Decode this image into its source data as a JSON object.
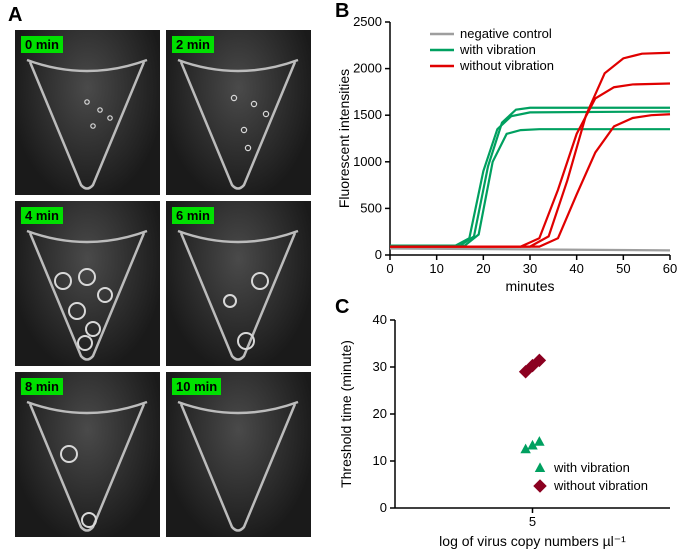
{
  "panelA": {
    "letter": "A",
    "tiles": [
      {
        "label": "0 min",
        "bubbles": [
          [
            72,
            72,
            2.2
          ],
          [
            85,
            80,
            2.2
          ],
          [
            95,
            88,
            2.2
          ],
          [
            78,
            96,
            2.2
          ]
        ]
      },
      {
        "label": "2 min",
        "bubbles": [
          [
            68,
            68,
            2.6
          ],
          [
            88,
            74,
            2.6
          ],
          [
            100,
            84,
            2.6
          ],
          [
            78,
            100,
            2.6
          ],
          [
            82,
            118,
            2.6
          ]
        ]
      },
      {
        "label": "4 min",
        "bubbles": [
          [
            48,
            80,
            8
          ],
          [
            72,
            76,
            8
          ],
          [
            90,
            94,
            7
          ],
          [
            62,
            110,
            8
          ],
          [
            78,
            128,
            7
          ],
          [
            70,
            142,
            7
          ]
        ]
      },
      {
        "label": "6 min",
        "bubbles": [
          [
            94,
            80,
            8
          ],
          [
            64,
            100,
            6
          ],
          [
            80,
            140,
            8
          ]
        ]
      },
      {
        "label": "8 min",
        "bubbles": [
          [
            54,
            82,
            8
          ],
          [
            74,
            148,
            7
          ]
        ]
      },
      {
        "label": "10 min",
        "bubbles": []
      }
    ],
    "tag_bg": "#00e000",
    "cone_stroke": "#bcbcbc",
    "cone_stroke_w": 2.5
  },
  "panelB": {
    "letter": "B",
    "xlabel": "minutes",
    "ylabel": "Fluorescent intensities",
    "xlim": [
      0,
      60
    ],
    "xtick_step": 10,
    "ylim": [
      0,
      2500
    ],
    "ytick_step": 500,
    "legend": [
      {
        "label": "negative control",
        "color": "#9e9e9e"
      },
      {
        "label": "with vibration",
        "color": "#00a060"
      },
      {
        "label": "without vibration",
        "color": "#e00000"
      }
    ],
    "series": [
      {
        "color": "#9e9e9e",
        "pts": [
          [
            0,
            70
          ],
          [
            60,
            50
          ]
        ]
      },
      {
        "color": "#00a060",
        "pts": [
          [
            0,
            100
          ],
          [
            14,
            100
          ],
          [
            17,
            180
          ],
          [
            20,
            900
          ],
          [
            23,
            1350
          ],
          [
            26,
            1490
          ],
          [
            30,
            1530
          ],
          [
            60,
            1540
          ]
        ]
      },
      {
        "color": "#00a060",
        "pts": [
          [
            0,
            100
          ],
          [
            15,
            100
          ],
          [
            18,
            200
          ],
          [
            21,
            950
          ],
          [
            24,
            1420
          ],
          [
            27,
            1560
          ],
          [
            30,
            1580
          ],
          [
            60,
            1580
          ]
        ]
      },
      {
        "color": "#00a060",
        "pts": [
          [
            0,
            100
          ],
          [
            16,
            100
          ],
          [
            19,
            220
          ],
          [
            22,
            1000
          ],
          [
            25,
            1300
          ],
          [
            28,
            1340
          ],
          [
            32,
            1350
          ],
          [
            60,
            1350
          ]
        ]
      },
      {
        "color": "#e00000",
        "pts": [
          [
            0,
            90
          ],
          [
            28,
            90
          ],
          [
            32,
            180
          ],
          [
            36,
            700
          ],
          [
            40,
            1300
          ],
          [
            44,
            1680
          ],
          [
            48,
            1800
          ],
          [
            52,
            1830
          ],
          [
            60,
            1840
          ]
        ]
      },
      {
        "color": "#e00000",
        "pts": [
          [
            0,
            90
          ],
          [
            30,
            90
          ],
          [
            34,
            200
          ],
          [
            38,
            800
          ],
          [
            42,
            1500
          ],
          [
            46,
            1950
          ],
          [
            50,
            2110
          ],
          [
            54,
            2160
          ],
          [
            60,
            2170
          ]
        ]
      },
      {
        "color": "#e00000",
        "pts": [
          [
            0,
            90
          ],
          [
            32,
            90
          ],
          [
            36,
            180
          ],
          [
            40,
            650
          ],
          [
            44,
            1100
          ],
          [
            48,
            1380
          ],
          [
            52,
            1470
          ],
          [
            56,
            1500
          ],
          [
            60,
            1510
          ]
        ]
      }
    ],
    "line_width": 2.2,
    "axis_color": "#000",
    "label_fontsize": 14,
    "tick_fontsize": 13
  },
  "panelC": {
    "letter": "C",
    "xlabel": "log of virus copy numbers µl⁻¹",
    "ylabel": "Threshold time (minute)",
    "xlim": [
      4.4,
      5.6
    ],
    "xticks": [
      5
    ],
    "ylim": [
      0,
      40
    ],
    "ytick_step": 10,
    "legend": [
      {
        "label": "with vibration",
        "color": "#00a060",
        "marker": "triangle"
      },
      {
        "label": "without vibration",
        "color": "#8b0020",
        "marker": "diamond"
      }
    ],
    "points": [
      {
        "x": 4.97,
        "y": 12.5,
        "color": "#00a060",
        "marker": "triangle"
      },
      {
        "x": 5.0,
        "y": 13.3,
        "color": "#00a060",
        "marker": "triangle"
      },
      {
        "x": 5.03,
        "y": 14.1,
        "color": "#00a060",
        "marker": "triangle"
      },
      {
        "x": 4.97,
        "y": 29.0,
        "color": "#8b0020",
        "marker": "diamond"
      },
      {
        "x": 5.0,
        "y": 30.3,
        "color": "#8b0020",
        "marker": "diamond"
      },
      {
        "x": 5.03,
        "y": 31.4,
        "color": "#8b0020",
        "marker": "diamond"
      }
    ],
    "marker_size": 9,
    "axis_color": "#000",
    "label_fontsize": 14,
    "tick_fontsize": 13
  }
}
